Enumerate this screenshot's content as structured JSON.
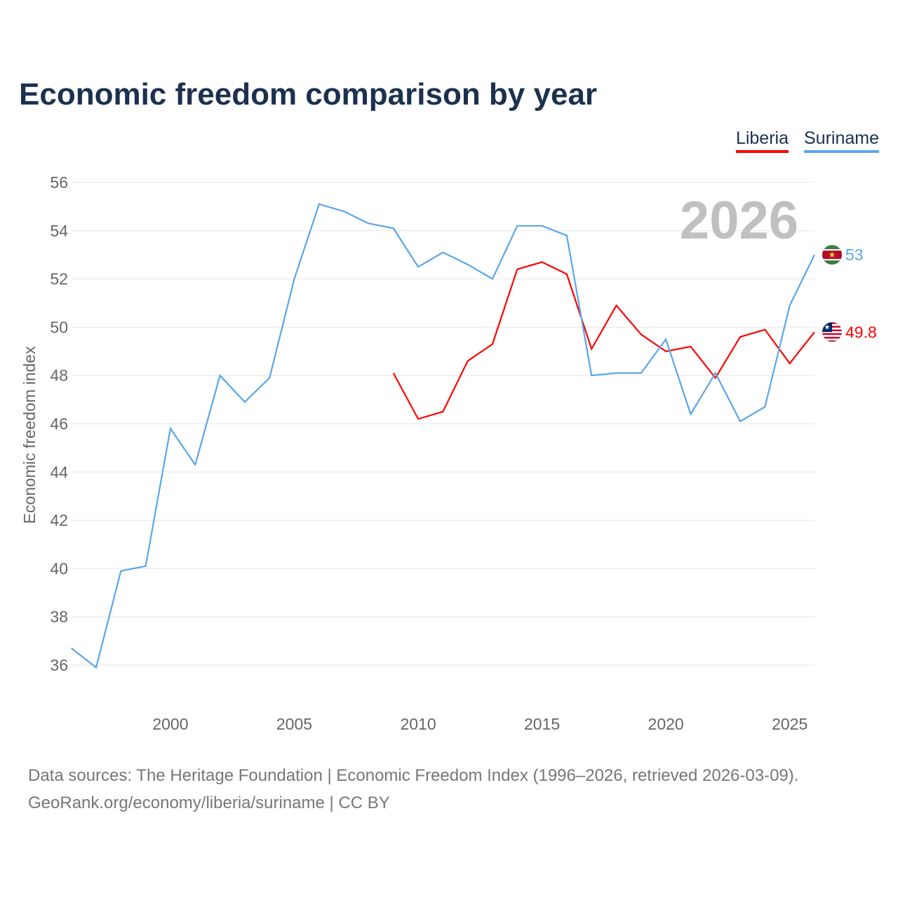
{
  "title": "Economic freedom comparison by year",
  "footer": {
    "line1": "Data sources: The Heritage Foundation | Economic Freedom Index (1996–2026, retrieved 2026-03-09).",
    "line2": "GeoRank.org/economy/liberia/suriname | CC BY"
  },
  "chart_data": {
    "type": "line",
    "title": "Economic freedom comparison by year",
    "ylabel": "Economic freedom index",
    "xlabel": "",
    "ylim": [
      36,
      56
    ],
    "xlim": [
      1996,
      2026
    ],
    "yticks": [
      36,
      38,
      40,
      42,
      44,
      46,
      48,
      50,
      52,
      54,
      56
    ],
    "xticks": [
      2000,
      2005,
      2010,
      2015,
      2020,
      2025
    ],
    "watermark_year": "2026",
    "legend_position": "top-right",
    "grid": true,
    "series": [
      {
        "name": "Liberia",
        "color": "#ff0000",
        "end_label": "49.8",
        "x": [
          2009,
          2010,
          2011,
          2012,
          2013,
          2014,
          2015,
          2016,
          2017,
          2018,
          2019,
          2020,
          2021,
          2022,
          2023,
          2024,
          2025,
          2026
        ],
        "values": [
          48.1,
          46.2,
          46.5,
          48.6,
          49.3,
          52.4,
          52.7,
          52.2,
          49.1,
          50.9,
          49.7,
          49.0,
          49.2,
          47.9,
          49.6,
          49.9,
          48.5,
          49.8
        ]
      },
      {
        "name": "Suriname",
        "color": "#5aa6ea",
        "end_label": "53",
        "x": [
          1996,
          1997,
          1998,
          1999,
          2000,
          2001,
          2002,
          2003,
          2004,
          2005,
          2006,
          2007,
          2008,
          2009,
          2010,
          2011,
          2012,
          2013,
          2014,
          2015,
          2016,
          2017,
          2018,
          2019,
          2020,
          2021,
          2022,
          2023,
          2024,
          2025,
          2026
        ],
        "values": [
          36.7,
          35.9,
          39.9,
          40.1,
          45.8,
          44.3,
          48.0,
          46.9,
          47.9,
          52.0,
          55.1,
          54.8,
          54.3,
          54.1,
          52.5,
          53.1,
          52.6,
          52.0,
          54.2,
          54.2,
          53.8,
          48.0,
          48.1,
          48.1,
          49.5,
          46.4,
          48.1,
          46.1,
          46.7,
          50.9,
          53.0
        ]
      }
    ]
  }
}
